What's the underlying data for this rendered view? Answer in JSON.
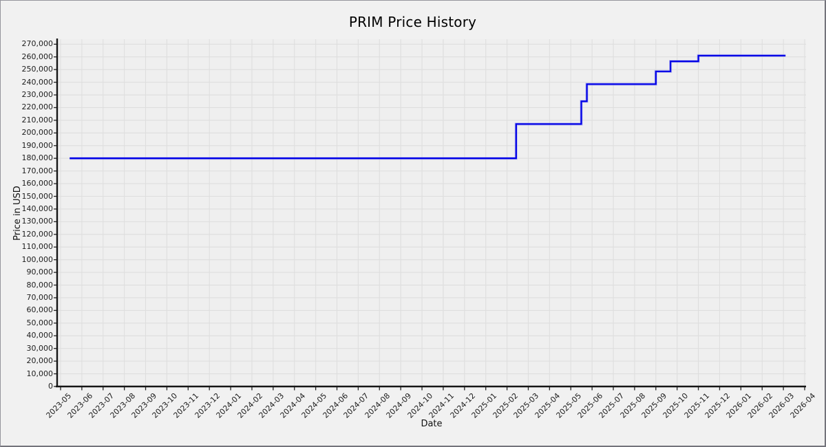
{
  "figure": {
    "background": "#f1f1f1",
    "plot_background": "#efefef",
    "grid_color": "#dedede",
    "spine_color": "#151515",
    "border_color": "#73737b"
  },
  "chart_data": {
    "type": "line",
    "step_style": "steps-post",
    "title": "PRIM Price History",
    "xlabel": "Date",
    "ylabel": "Price in USD",
    "line_color": "#0000e6",
    "line_halo_color": "#8c8cf2",
    "grid": true,
    "legend": "none",
    "ylim": [
      0,
      273000
    ],
    "y_tick_step": 10000,
    "y_ticks": [
      0,
      10000,
      20000,
      30000,
      40000,
      50000,
      60000,
      70000,
      80000,
      90000,
      100000,
      110000,
      120000,
      130000,
      140000,
      150000,
      160000,
      170000,
      180000,
      190000,
      200000,
      210000,
      220000,
      230000,
      240000,
      250000,
      260000,
      270000
    ],
    "x_ticks": [
      "2023-05",
      "2023-06",
      "2023-07",
      "2023-08",
      "2023-09",
      "2023-10",
      "2023-11",
      "2023-12",
      "2024-01",
      "2024-02",
      "2024-03",
      "2024-04",
      "2024-05",
      "2024-06",
      "2024-07",
      "2024-08",
      "2024-09",
      "2024-10",
      "2024-11",
      "2024-12",
      "2025-01",
      "2025-02",
      "2025-03",
      "2025-04",
      "2025-05",
      "2025-06",
      "2025-07",
      "2025-08",
      "2025-09",
      "2025-10",
      "2025-11",
      "2025-12",
      "2026-01",
      "2026-02",
      "2026-03",
      "2026-04"
    ],
    "series": [
      {
        "name": "PRIM",
        "points": [
          {
            "date": "2023-05-14",
            "value": 180000
          },
          {
            "date": "2025-02-14",
            "value": 207000
          },
          {
            "date": "2025-05-16",
            "value": 225000
          },
          {
            "date": "2025-05-24",
            "value": 238500
          },
          {
            "date": "2025-09-01",
            "value": 248500
          },
          {
            "date": "2025-09-22",
            "value": 256500
          },
          {
            "date": "2025-11-01",
            "value": 261000
          },
          {
            "date": "2026-03-04",
            "value": 261000
          }
        ]
      }
    ]
  }
}
